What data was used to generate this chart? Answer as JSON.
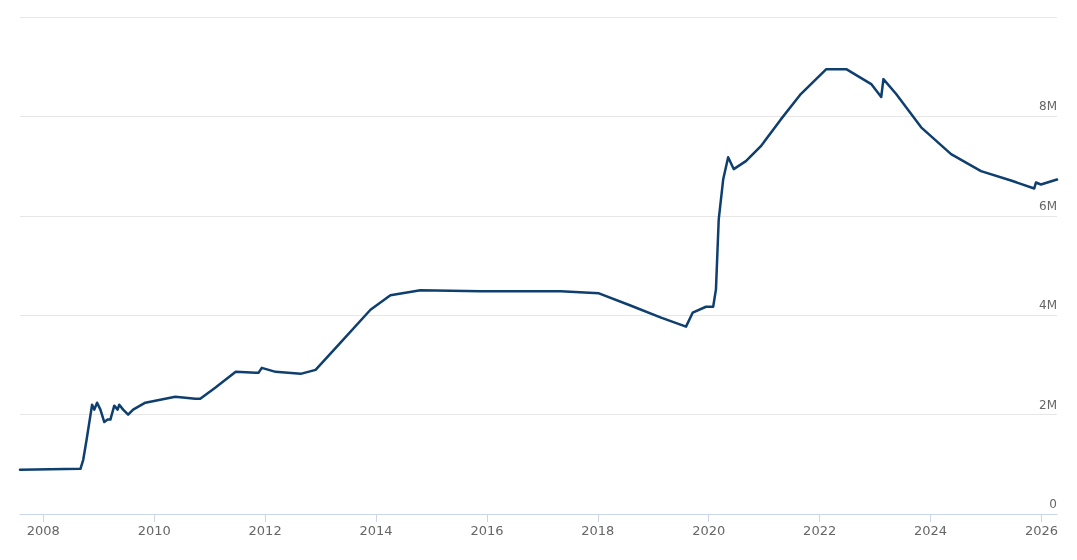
{
  "chart_data": {
    "type": "line",
    "x": [
      2007.58,
      2008.67,
      2008.72,
      2008.78,
      2008.88,
      2008.92,
      2008.97,
      2009.03,
      2009.1,
      2009.16,
      2009.21,
      2009.28,
      2009.34,
      2009.37,
      2009.44,
      2009.53,
      2009.62,
      2009.84,
      2010.11,
      2010.38,
      2010.74,
      2010.83,
      2011.1,
      2011.47,
      2011.88,
      2011.94,
      2012.19,
      2012.64,
      2012.91,
      2013.36,
      2013.9,
      2014.26,
      2014.8,
      2015.89,
      2016.97,
      2017.33,
      2018.02,
      2018.6,
      2019.14,
      2019.59,
      2019.71,
      2019.95,
      2020.08,
      2020.13,
      2020.18,
      2020.26,
      2020.35,
      2020.45,
      2020.67,
      2020.94,
      2021.3,
      2021.66,
      2022.12,
      2022.48,
      2022.93,
      2023.11,
      2023.15,
      2023.38,
      2023.83,
      2024.37,
      2024.91,
      2025.45,
      2025.87,
      2025.9,
      2025.99,
      2026.28
    ],
    "series": [
      {
        "color": "#0e3f6e",
        "values": [
          0.89,
          0.91,
          1.09,
          1.49,
          2.2,
          2.1,
          2.24,
          2.1,
          1.85,
          1.9,
          1.9,
          2.18,
          2.1,
          2.2,
          2.1,
          2.0,
          2.1,
          2.24,
          2.3,
          2.36,
          2.32,
          2.32,
          2.54,
          2.86,
          2.84,
          2.94,
          2.86,
          2.82,
          2.9,
          3.45,
          4.11,
          4.4,
          4.5,
          4.48,
          4.48,
          4.48,
          4.44,
          4.19,
          3.95,
          3.77,
          4.05,
          4.17,
          4.17,
          4.52,
          5.93,
          6.73,
          7.18,
          6.94,
          7.1,
          7.4,
          7.94,
          8.45,
          8.95,
          8.95,
          8.65,
          8.39,
          8.75,
          8.45,
          7.78,
          7.24,
          6.9,
          6.71,
          6.55,
          6.67,
          6.63,
          6.73
        ]
      }
    ],
    "xlim": [
      2007.58,
      2026.28
    ],
    "xticks": [
      2008,
      2010,
      2012,
      2014,
      2016,
      2018,
      2020,
      2022,
      2024,
      2026
    ],
    "ylim": [
      0,
      10
    ],
    "yticks": [
      0,
      {
        "value": 2,
        "label": "2M"
      },
      {
        "value": 4,
        "label": "4M"
      },
      {
        "value": 6,
        "label": "6M"
      },
      {
        "value": 8,
        "label": "8M"
      },
      {
        "value": 10,
        "label": null
      }
    ],
    "grid": "y",
    "marker": "none",
    "line_style": "solid"
  }
}
